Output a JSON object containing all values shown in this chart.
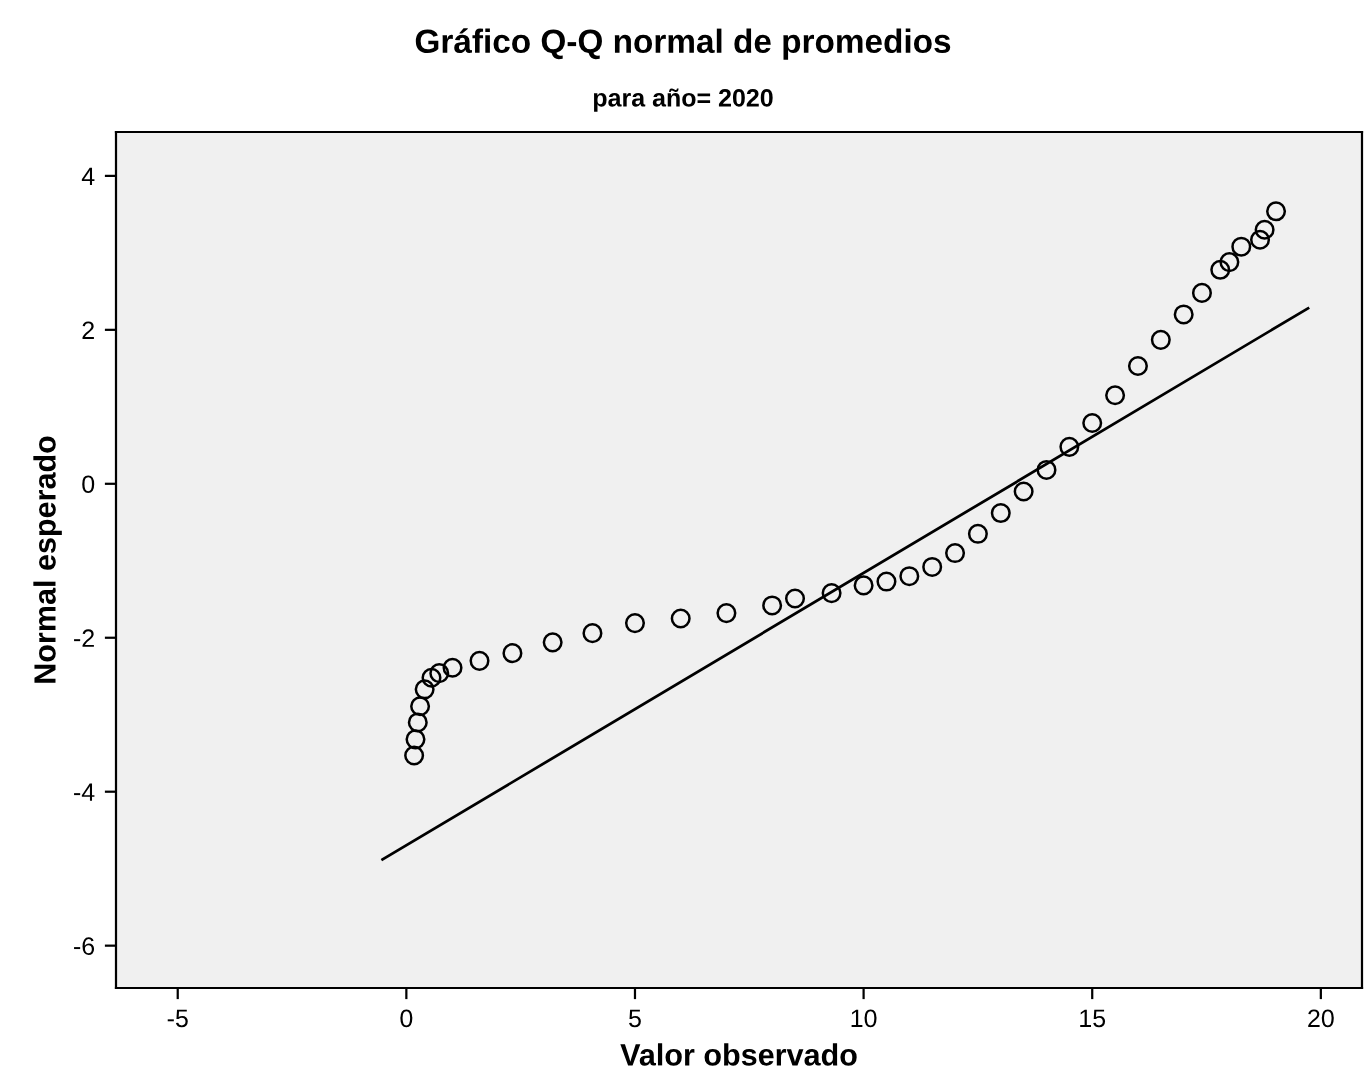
{
  "chart_data": {
    "type": "scatter",
    "title": "Gráfico Q-Q normal de promedios",
    "subtitle": "para año= 2020",
    "xlabel": "Valor observado",
    "ylabel": "Normal esperado",
    "xlim": [
      -6.35,
      20.9
    ],
    "ylim": [
      -6.55,
      4.57
    ],
    "xticks": [
      -5,
      0,
      5,
      10,
      15,
      20
    ],
    "yticks": [
      -6,
      -4,
      -2,
      0,
      2,
      4
    ],
    "grid": false,
    "legend": false,
    "series": [
      {
        "marker": "circle",
        "color": "#000000",
        "x": [
          0.17,
          0.2,
          0.25,
          0.3,
          0.4,
          0.55,
          0.72,
          1.01,
          1.6,
          2.32,
          3.2,
          4.07,
          5,
          6,
          7,
          8,
          8.5,
          9.3,
          10,
          10.5,
          11,
          11.5,
          12,
          12.5,
          13,
          13.5,
          14,
          14.5,
          15,
          15.5,
          16,
          16.5,
          17,
          17.4,
          17.8,
          18.0,
          18.26,
          18.67,
          18.77,
          19.02
        ],
        "values": [
          -3.53,
          -3.32,
          -3.1,
          -2.89,
          -2.67,
          -2.52,
          -2.46,
          -2.39,
          -2.3,
          -2.2,
          -2.06,
          -1.94,
          -1.81,
          -1.75,
          -1.68,
          -1.58,
          -1.49,
          -1.42,
          -1.32,
          -1.27,
          -1.2,
          -1.08,
          -0.9,
          -0.65,
          -0.38,
          -0.1,
          0.18,
          0.48,
          0.79,
          1.15,
          1.53,
          1.87,
          2.2,
          2.48,
          2.78,
          2.88,
          3.08,
          3.17,
          3.3,
          3.54
        ]
      },
      {
        "type": "line",
        "marker": "none",
        "color": "#000000",
        "x": [
          -0.52,
          19.72
        ],
        "values": [
          -4.88,
          2.28
        ]
      }
    ]
  }
}
